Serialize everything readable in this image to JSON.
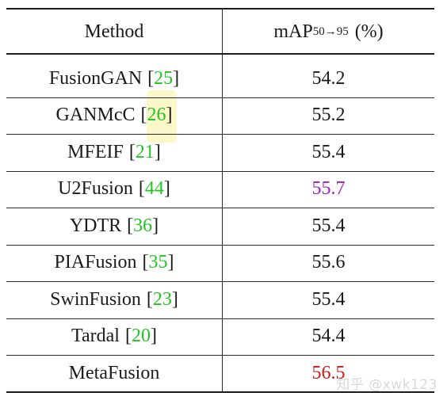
{
  "header": {
    "method": "Method",
    "map_base": "mAP",
    "map_sub": "50→95",
    "map_unit": "(%)"
  },
  "rows": [
    {
      "method": "FusionGAN",
      "cite": "25",
      "value": "54.2",
      "style": "normal"
    },
    {
      "method": "GANMcC",
      "cite": "26",
      "value": "55.2",
      "style": "normal"
    },
    {
      "method": "MFEIF",
      "cite": "21",
      "value": "55.4",
      "style": "normal"
    },
    {
      "method": "U2Fusion",
      "cite": "44",
      "value": "55.7",
      "style": "second-best"
    },
    {
      "method": "YDTR",
      "cite": "36",
      "value": "55.4",
      "style": "normal"
    },
    {
      "method": "PIAFusion",
      "cite": "35",
      "value": "55.6",
      "style": "normal"
    },
    {
      "method": "SwinFusion",
      "cite": "23",
      "value": "55.4",
      "style": "normal"
    },
    {
      "method": "Tardal",
      "cite": "20",
      "value": "54.4",
      "style": "normal"
    },
    {
      "method": "MetaFusion",
      "cite": "",
      "value": "56.5",
      "style": "best"
    }
  ],
  "colors": {
    "citation": "#22c422",
    "second_best": "#a020c0",
    "best": "#d01818",
    "highlight": "#fbf7c8"
  },
  "watermark": "知乎 @xwk123"
}
